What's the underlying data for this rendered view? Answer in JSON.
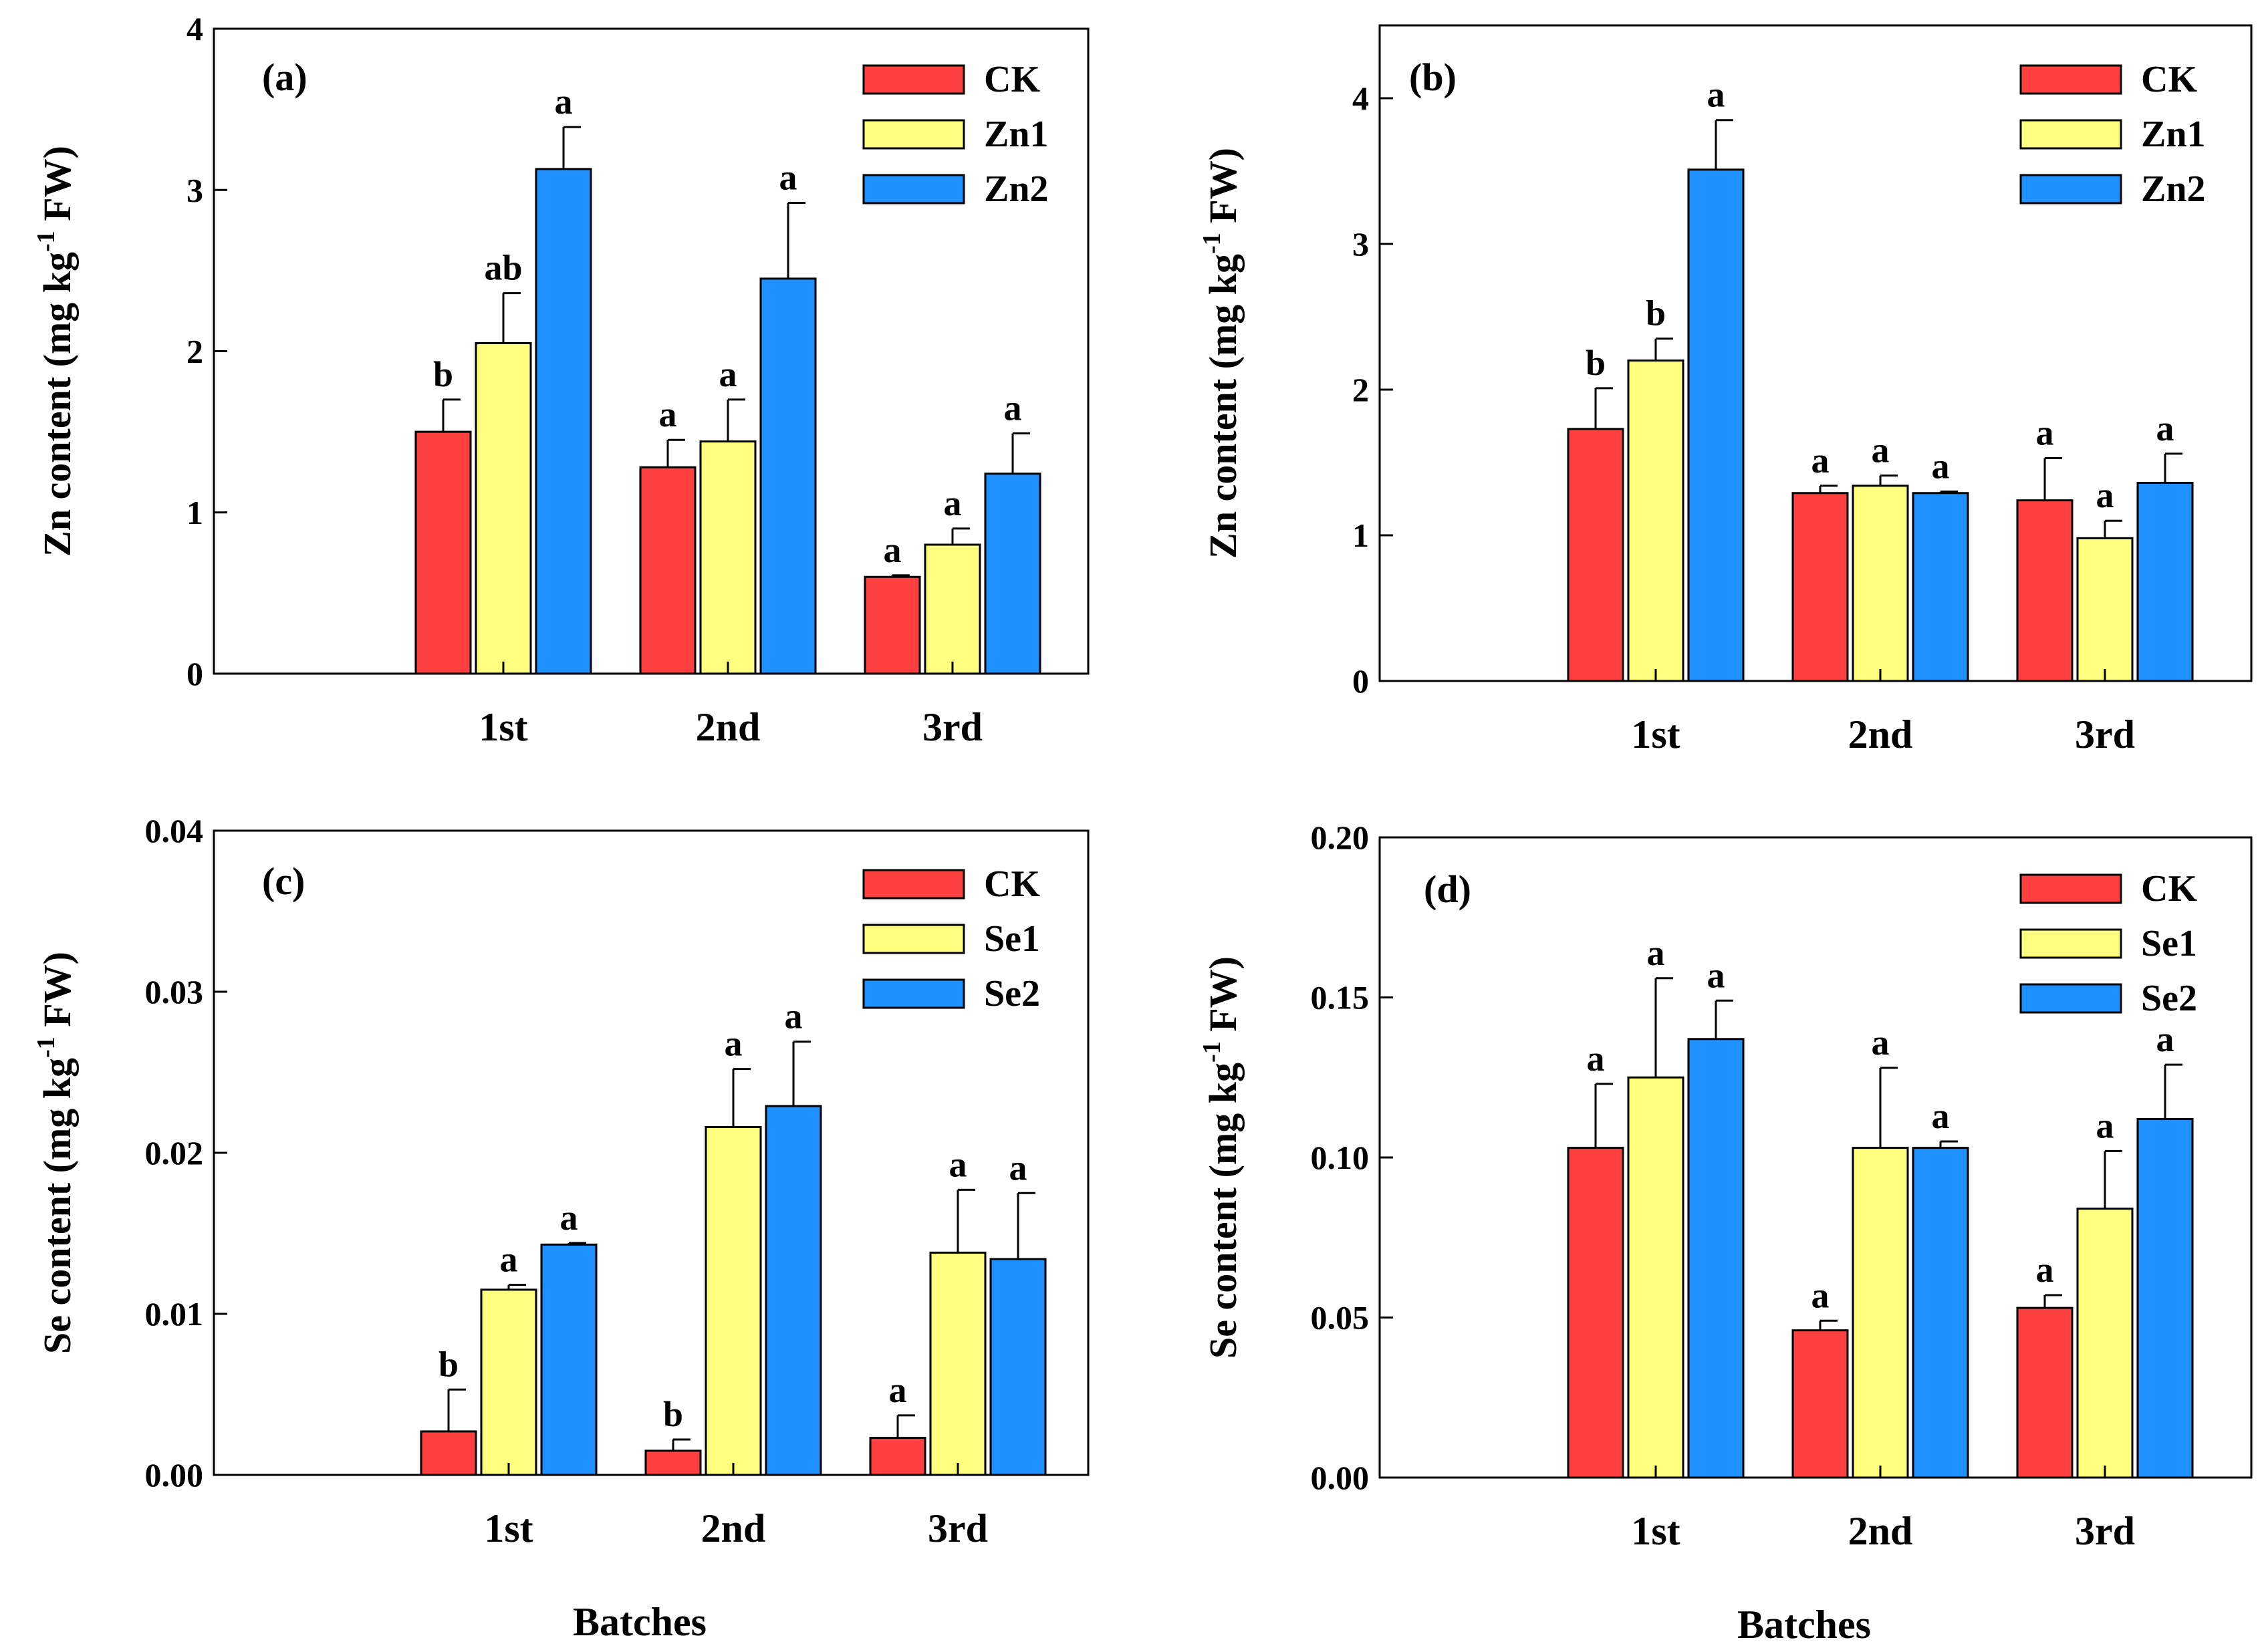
{
  "colors": {
    "CK": "#ff4040",
    "T1": "#ffff80",
    "T2": "#1e90ff",
    "axis": "#000000"
  },
  "chart_data": [
    {
      "panel_label": "(a)",
      "type": "bar",
      "categories": [
        "1st",
        "2nd",
        "3rd"
      ],
      "xlabel": "",
      "ylabel": "Zn content (mg kg-1 FW)",
      "ylim": [
        0,
        4
      ],
      "yticks": [
        "0",
        "1",
        "2",
        "3",
        "4"
      ],
      "legend": [
        "CK",
        "Zn1",
        "Zn2"
      ],
      "legend_position": "top-right",
      "series": [
        {
          "name": "CK",
          "values": [
            1.5,
            1.28,
            0.6
          ],
          "errors": [
            0.2,
            0.17,
            0.01
          ],
          "letters": [
            "b",
            "a",
            "a"
          ]
        },
        {
          "name": "Zn1",
          "values": [
            2.05,
            1.44,
            0.8
          ],
          "errors": [
            0.31,
            0.26,
            0.1
          ],
          "letters": [
            "ab",
            "a",
            "a"
          ]
        },
        {
          "name": "Zn2",
          "values": [
            3.13,
            2.45,
            1.24
          ],
          "errors": [
            0.26,
            0.47,
            0.25
          ],
          "letters": [
            "a",
            "a",
            "a"
          ]
        }
      ]
    },
    {
      "panel_label": "(b)",
      "type": "bar",
      "categories": [
        "1st",
        "2nd",
        "3rd"
      ],
      "xlabel": "",
      "ylabel": "Zn content (mg kg-1 FW)",
      "ylim": [
        0,
        4.5
      ],
      "yticks": [
        "0",
        "1",
        "2",
        "3",
        "4"
      ],
      "legend": [
        "CK",
        "Zn1",
        "Zn2"
      ],
      "legend_position": "top-right",
      "series": [
        {
          "name": "CK",
          "values": [
            1.73,
            1.29,
            1.24
          ],
          "errors": [
            0.28,
            0.05,
            0.29
          ],
          "letters": [
            "b",
            "a",
            "a"
          ]
        },
        {
          "name": "Zn1",
          "values": [
            2.2,
            1.34,
            0.98
          ],
          "errors": [
            0.15,
            0.07,
            0.12
          ],
          "letters": [
            "b",
            "a",
            "a"
          ]
        },
        {
          "name": "Zn2",
          "values": [
            3.51,
            1.29,
            1.36
          ],
          "errors": [
            0.34,
            0.01,
            0.2
          ],
          "letters": [
            "a",
            "a",
            "a"
          ]
        }
      ]
    },
    {
      "panel_label": "(c)",
      "type": "bar",
      "categories": [
        "1st",
        "2nd",
        "3rd"
      ],
      "xlabel": "Batches",
      "ylabel": "Se content (mg kg-1 FW)",
      "ylim": [
        0,
        0.04
      ],
      "yticks": [
        "0.00",
        "0.01",
        "0.02",
        "0.03",
        "0.04"
      ],
      "legend": [
        "CK",
        "Se1",
        "Se2"
      ],
      "legend_position": "top-right",
      "series": [
        {
          "name": "CK",
          "values": [
            0.0027,
            0.0015,
            0.0023
          ],
          "errors": [
            0.0026,
            0.0007,
            0.0014
          ],
          "letters": [
            "b",
            "b",
            "a"
          ]
        },
        {
          "name": "Se1",
          "values": [
            0.0115,
            0.0216,
            0.0138
          ],
          "errors": [
            0.0003,
            0.0036,
            0.0039
          ],
          "letters": [
            "a",
            "a",
            "a"
          ]
        },
        {
          "name": "Se2",
          "values": [
            0.0143,
            0.0229,
            0.0134
          ],
          "errors": [
            0.0001,
            0.004,
            0.0041
          ],
          "letters": [
            "a",
            "a",
            "a"
          ]
        }
      ]
    },
    {
      "panel_label": "(d)",
      "type": "bar",
      "categories": [
        "1st",
        "2nd",
        "3rd"
      ],
      "xlabel": "Batches",
      "ylabel": "Se content (mg kg-1 FW)",
      "ylim": [
        0,
        0.2
      ],
      "yticks": [
        "0.00",
        "0.05",
        "0.10",
        "0.15",
        "0.20"
      ],
      "legend": [
        "CK",
        "Se1",
        "Se2"
      ],
      "legend_position": "top-right",
      "series": [
        {
          "name": "CK",
          "values": [
            0.103,
            0.046,
            0.053
          ],
          "errors": [
            0.02,
            0.003,
            0.004
          ],
          "letters": [
            "a",
            "a",
            "a"
          ]
        },
        {
          "name": "Se1",
          "values": [
            0.125,
            0.103,
            0.084
          ],
          "errors": [
            0.031,
            0.025,
            0.018
          ],
          "letters": [
            "a",
            "a",
            "a"
          ]
        },
        {
          "name": "Se2",
          "values": [
            0.137,
            0.103,
            0.112
          ],
          "errors": [
            0.012,
            0.002,
            0.017
          ],
          "letters": [
            "a",
            "a",
            "a"
          ]
        }
      ]
    }
  ]
}
